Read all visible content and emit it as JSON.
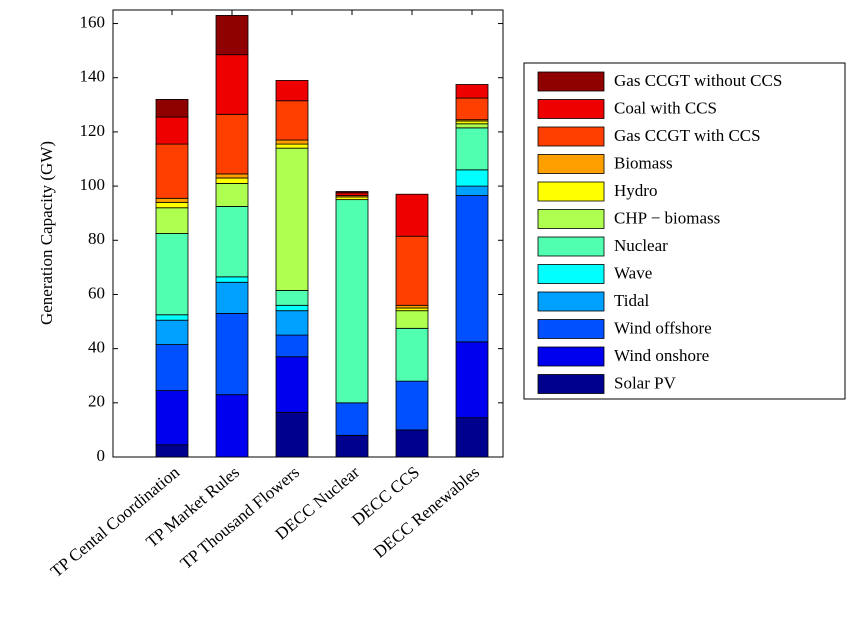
{
  "chart_data": {
    "type": "stacked-bar",
    "y_label": "Generation Capacity (GW)",
    "categories": [
      "TP Cental Coordination",
      "TP Market Rules",
      "TP Thousand Flowers",
      "DECC Nuclear",
      "DECC CCS",
      "DECC Renewables"
    ],
    "series": [
      {
        "name": "Solar PV",
        "color": "#00008f",
        "values": [
          4.5,
          0,
          16.5,
          8,
          10,
          14.5
        ]
      },
      {
        "name": "Wind onshore",
        "color": "#0000ef",
        "values": [
          20,
          23,
          20.5,
          0,
          0,
          28
        ]
      },
      {
        "name": "Wind offshore",
        "color": "#0050ff",
        "values": [
          17,
          30,
          8,
          12,
          18,
          54
        ]
      },
      {
        "name": "Tidal",
        "color": "#00a0ff",
        "values": [
          9,
          11.5,
          9,
          0,
          0,
          3.5
        ]
      },
      {
        "name": "Wave",
        "color": "#00ffff",
        "values": [
          2,
          2,
          2,
          0,
          0,
          6
        ]
      },
      {
        "name": "Nuclear",
        "color": "#50ffaf",
        "values": [
          30,
          26,
          5.5,
          75,
          19.5,
          15.5
        ]
      },
      {
        "name": "CHP − biomass",
        "color": "#afff50",
        "values": [
          9.5,
          8.5,
          52.5,
          0,
          6.5,
          1.5
        ]
      },
      {
        "name": "Hydro",
        "color": "#ffff00",
        "values": [
          2,
          2,
          1.5,
          1,
          1,
          1
        ]
      },
      {
        "name": "Biomass",
        "color": "#ff9f00",
        "values": [
          1.5,
          1.5,
          1.5,
          0.5,
          1,
          0.5
        ]
      },
      {
        "name": "Gas CCGT with CCS",
        "color": "#ff3f00",
        "values": [
          20,
          22,
          14.5,
          0,
          25.5,
          8
        ]
      },
      {
        "name": "Coal with CCS",
        "color": "#ef0000",
        "values": [
          10,
          22,
          7.5,
          1,
          15.5,
          5
        ]
      },
      {
        "name": "Gas CCGT without CCS",
        "color": "#8f0000",
        "values": [
          6.5,
          14.5,
          0,
          0.5,
          0,
          0
        ]
      }
    ],
    "ylim": [
      0,
      165
    ],
    "yticks": [
      0,
      20,
      40,
      60,
      80,
      100,
      120,
      140,
      160
    ],
    "grid": false,
    "legend": "right"
  }
}
